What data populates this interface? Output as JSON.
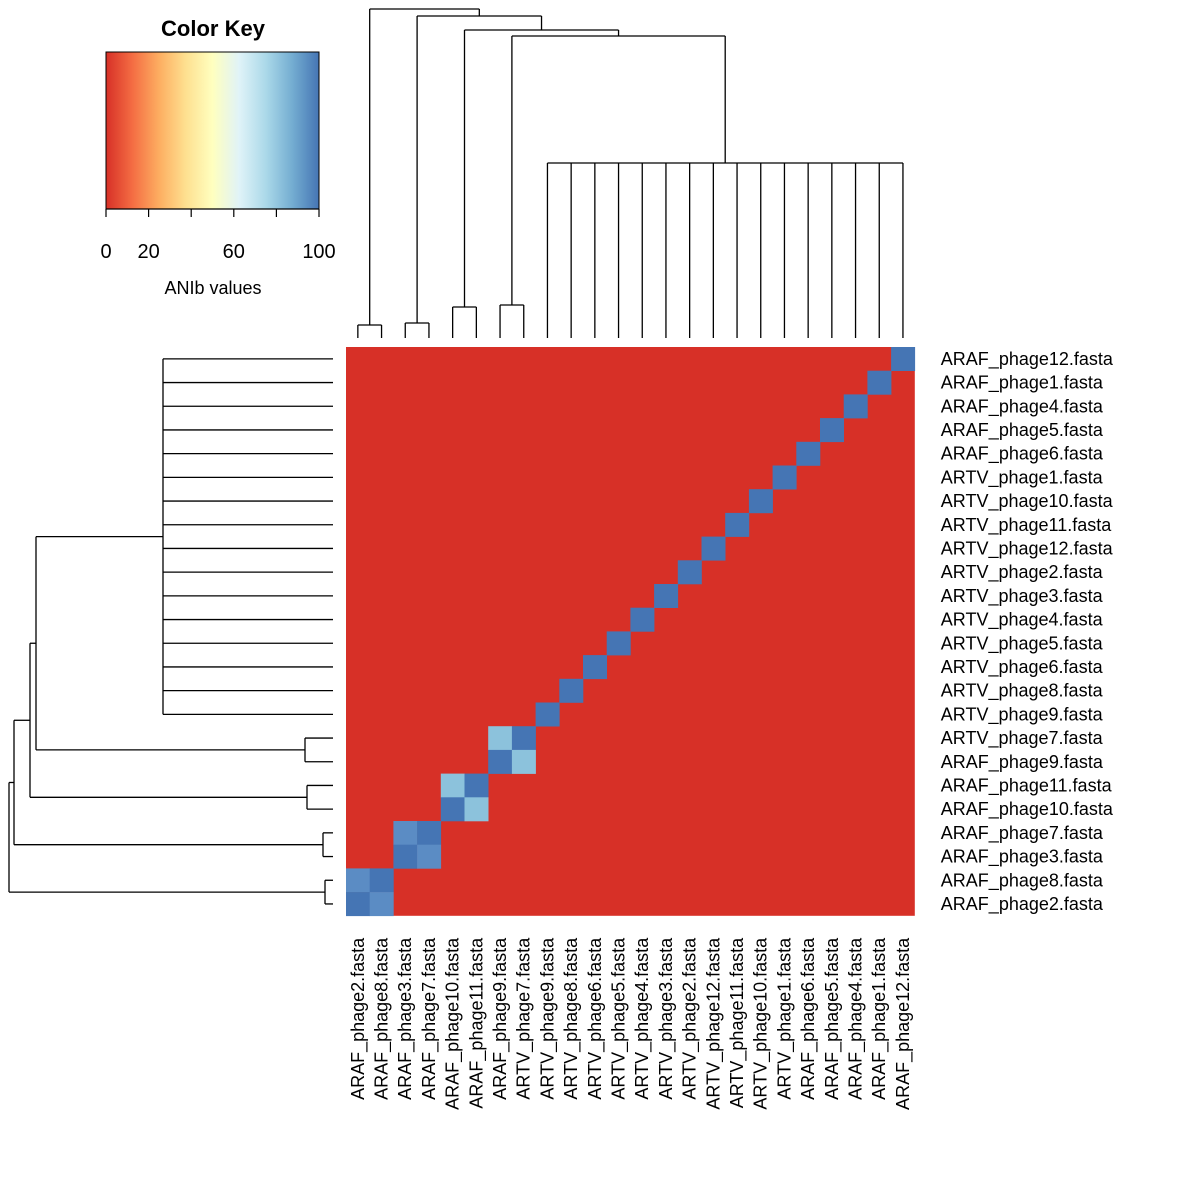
{
  "chart_data": {
    "type": "heatmap",
    "title": "",
    "color_key": {
      "title": "Color Key",
      "xlabel": "ANIb values",
      "range": [
        0,
        100
      ],
      "ticks": [
        0,
        20,
        60,
        100
      ],
      "palette": [
        "#d73027",
        "#f46d43",
        "#fdae61",
        "#fee090",
        "#ffffbf",
        "#e0f3f8",
        "#abd9e9",
        "#74add1",
        "#4575b4"
      ]
    },
    "cell_colors": {
      "low": "#d73027",
      "identity": "#4575b4",
      "pair_light": "#8cc2dc",
      "pair_mid": "#5b8cc4"
    },
    "row_labels": [
      "ARAF_phage12.fasta",
      "ARAF_phage1.fasta",
      "ARAF_phage4.fasta",
      "ARAF_phage5.fasta",
      "ARAF_phage6.fasta",
      "ARTV_phage1.fasta",
      "ARTV_phage10.fasta",
      "ARTV_phage11.fasta",
      "ARTV_phage12.fasta",
      "ARTV_phage2.fasta",
      "ARTV_phage3.fasta",
      "ARTV_phage4.fasta",
      "ARTV_phage5.fasta",
      "ARTV_phage6.fasta",
      "ARTV_phage8.fasta",
      "ARTV_phage9.fasta",
      "ARTV_phage7.fasta",
      "ARAF_phage9.fasta",
      "ARAF_phage11.fasta",
      "ARAF_phage10.fasta",
      "ARAF_phage7.fasta",
      "ARAF_phage3.fasta",
      "ARAF_phage8.fasta",
      "ARAF_phage2.fasta"
    ],
    "col_labels": [
      "ARAF_phage2.fasta",
      "ARAF_phage8.fasta",
      "ARAF_phage3.fasta",
      "ARAF_phage7.fasta",
      "ARAF_phage10.fasta",
      "ARAF_phage11.fasta",
      "ARAF_phage9.fasta",
      "ARTV_phage7.fasta",
      "ARTV_phage9.fasta",
      "ARTV_phage8.fasta",
      "ARTV_phage6.fasta",
      "ARTV_phage5.fasta",
      "ARTV_phage4.fasta",
      "ARTV_phage3.fasta",
      "ARTV_phage2.fasta",
      "ARTV_phage12.fasta",
      "ARTV_phage11.fasta",
      "ARTV_phage10.fasta",
      "ARTV_phage1.fasta",
      "ARAF_phage6.fasta",
      "ARAF_phage5.fasta",
      "ARAF_phage4.fasta",
      "ARAF_phage1.fasta",
      "ARAF_phage12.fasta"
    ],
    "cluster_pairs": [
      {
        "members": [
          "ARAF_phage2.fasta",
          "ARAF_phage8.fasta"
        ],
        "off_diagonal_value": 82
      },
      {
        "members": [
          "ARAF_phage3.fasta",
          "ARAF_phage7.fasta"
        ],
        "off_diagonal_value": 82
      },
      {
        "members": [
          "ARAF_phage10.fasta",
          "ARAF_phage11.fasta"
        ],
        "off_diagonal_value": 72
      },
      {
        "members": [
          "ARAF_phage9.fasta",
          "ARTV_phage7.fasta"
        ],
        "off_diagonal_value": 72
      }
    ],
    "diagonal_value": 100,
    "background_value": 0,
    "legend_position": "top-left"
  }
}
